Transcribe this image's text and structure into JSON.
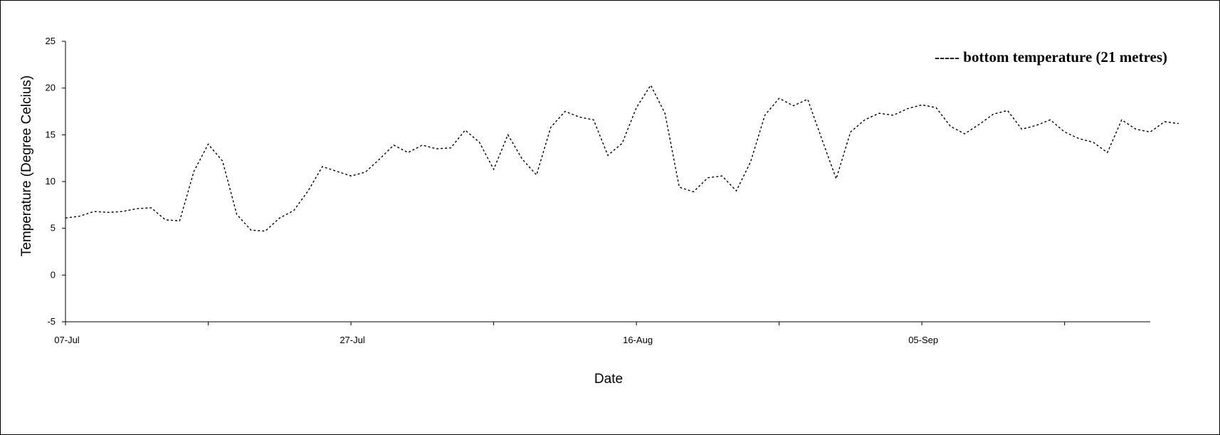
{
  "chart_data": {
    "type": "line",
    "title": "",
    "xlabel": "Date",
    "ylabel": "Temperature (Degree Celcius)",
    "ylim": [
      -5,
      25
    ],
    "yticks": [
      -5,
      0,
      5,
      10,
      15,
      20,
      25
    ],
    "x_tick_labels": [
      "07-Jul",
      "27-Jul",
      "16-Aug",
      "05-Sep"
    ],
    "xlim": [
      "2000-07-07",
      "2000-09-21"
    ],
    "x_tick_dates": [
      "2000-07-07",
      "2000-07-17",
      "2000-07-27",
      "2000-08-06",
      "2000-08-16",
      "2000-08-26",
      "2000-09-05",
      "2000-09-15"
    ],
    "legend": {
      "placement": "top-right",
      "label": "----- bottom temperature (21 metres)"
    },
    "grid": false,
    "series": [
      {
        "name": "bottom temperature (21 metres)",
        "style": "dashed",
        "color": "#000000",
        "points": [
          [
            "2000-07-07",
            6.1
          ],
          [
            "2000-07-08",
            6.3
          ],
          [
            "2000-07-09",
            6.8
          ],
          [
            "2000-07-10",
            6.7
          ],
          [
            "2000-07-11",
            6.8
          ],
          [
            "2000-07-12",
            7.1
          ],
          [
            "2000-07-13",
            7.2
          ],
          [
            "2000-07-14",
            5.9
          ],
          [
            "2000-07-15",
            5.8
          ],
          [
            "2000-07-16",
            11.1
          ],
          [
            "2000-07-17",
            14.0
          ],
          [
            "2000-07-18",
            12.2
          ],
          [
            "2000-07-19",
            6.5
          ],
          [
            "2000-07-20",
            4.8
          ],
          [
            "2000-07-21",
            4.7
          ],
          [
            "2000-07-22",
            6.1
          ],
          [
            "2000-07-23",
            6.9
          ],
          [
            "2000-07-24",
            9.0
          ],
          [
            "2000-07-25",
            11.6
          ],
          [
            "2000-07-26",
            11.1
          ],
          [
            "2000-07-27",
            10.6
          ],
          [
            "2000-07-28",
            11.0
          ],
          [
            "2000-07-29",
            12.4
          ],
          [
            "2000-07-30",
            13.9
          ],
          [
            "2000-07-31",
            13.1
          ],
          [
            "2000-08-01",
            13.9
          ],
          [
            "2000-08-02",
            13.5
          ],
          [
            "2000-08-03",
            13.6
          ],
          [
            "2000-08-04",
            15.5
          ],
          [
            "2000-08-05",
            14.2
          ],
          [
            "2000-08-06",
            11.3
          ],
          [
            "2000-08-07",
            15.0
          ],
          [
            "2000-08-08",
            12.4
          ],
          [
            "2000-08-09",
            10.7
          ],
          [
            "2000-08-10",
            15.8
          ],
          [
            "2000-08-11",
            17.5
          ],
          [
            "2000-08-12",
            16.9
          ],
          [
            "2000-08-13",
            16.6
          ],
          [
            "2000-08-14",
            12.8
          ],
          [
            "2000-08-15",
            14.1
          ],
          [
            "2000-08-16",
            17.9
          ],
          [
            "2000-08-17",
            20.3
          ],
          [
            "2000-08-18",
            17.3
          ],
          [
            "2000-08-19",
            9.4
          ],
          [
            "2000-08-20",
            8.9
          ],
          [
            "2000-08-21",
            10.4
          ],
          [
            "2000-08-22",
            10.6
          ],
          [
            "2000-08-23",
            9.0
          ],
          [
            "2000-08-24",
            12.1
          ],
          [
            "2000-08-25",
            17.1
          ],
          [
            "2000-08-26",
            18.9
          ],
          [
            "2000-08-27",
            18.1
          ],
          [
            "2000-08-28",
            18.8
          ],
          [
            "2000-08-29",
            14.5
          ],
          [
            "2000-08-30",
            10.3
          ],
          [
            "2000-08-31",
            15.3
          ],
          [
            "2000-09-01",
            16.6
          ],
          [
            "2000-09-02",
            17.3
          ],
          [
            "2000-09-03",
            17.1
          ],
          [
            "2000-09-04",
            17.8
          ],
          [
            "2000-09-05",
            18.2
          ],
          [
            "2000-09-06",
            17.9
          ],
          [
            "2000-09-07",
            15.9
          ],
          [
            "2000-09-08",
            15.1
          ],
          [
            "2000-09-09",
            16.1
          ],
          [
            "2000-09-10",
            17.2
          ],
          [
            "2000-09-11",
            17.6
          ],
          [
            "2000-09-12",
            15.6
          ],
          [
            "2000-09-13",
            16.0
          ],
          [
            "2000-09-14",
            16.6
          ],
          [
            "2000-09-15",
            15.3
          ],
          [
            "2000-09-16",
            14.6
          ],
          [
            "2000-09-17",
            14.2
          ],
          [
            "2000-09-18",
            13.1
          ],
          [
            "2000-09-19",
            16.6
          ],
          [
            "2000-09-20",
            15.6
          ],
          [
            "2000-09-21",
            15.3
          ],
          [
            "2000-09-22",
            16.4
          ],
          [
            "2000-09-23",
            16.2
          ]
        ]
      }
    ]
  }
}
